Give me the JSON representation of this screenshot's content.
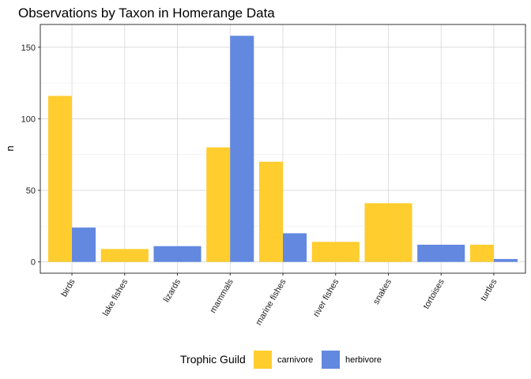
{
  "chart_data": {
    "type": "bar",
    "title": "Observations by Taxon in Homerange Data",
    "xlabel": "",
    "ylabel": "n",
    "categories": [
      "birds",
      "lake fishes",
      "lizards",
      "mammals",
      "marine fishes",
      "river fishes",
      "snakes",
      "tortoises",
      "turtles"
    ],
    "series": [
      {
        "name": "carnivore",
        "color": "#FFCD2E",
        "values": [
          116,
          9,
          null,
          80,
          70,
          14,
          41,
          null,
          12
        ]
      },
      {
        "name": "herbivore",
        "color": "#6288E0",
        "values": [
          24,
          null,
          11,
          158,
          20,
          null,
          null,
          12,
          2
        ]
      }
    ],
    "ylim": [
      -7.9,
      165.9
    ],
    "yticks": [
      0,
      50,
      100,
      150
    ],
    "grid": true,
    "legend": {
      "title": "Trophic Guild",
      "position": "bottom"
    }
  }
}
